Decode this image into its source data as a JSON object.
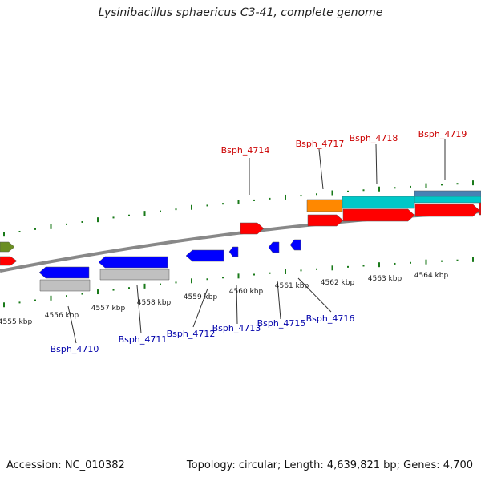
{
  "header": {
    "title": "Lysinibacillus sphaericus C3-41, complete genome"
  },
  "footer": {
    "accession": "Accession: NC_010382",
    "topology": "Topology: circular; Length: 4,639,821 bp; Genes: 4,700"
  },
  "colors": {
    "backbone": "#808080",
    "tick": "#1a7a1a",
    "forward_label": "#cc0000",
    "reverse_label": "#0000aa",
    "gene_red": "#ff0000",
    "gene_blue": "#0000ff",
    "gene_grey": "#c0c0c0",
    "gene_orange": "#ff8800",
    "gene_cyan": "#00c8c8",
    "gene_steel": "#4682b4",
    "gene_olive": "#6b8e23"
  },
  "ticks": [
    "4555 kbp",
    "4556 kbp",
    "4557 kbp",
    "4558 kbp",
    "4559 kbp",
    "4560 kbp",
    "4561 kbp",
    "4562 kbp",
    "4563 kbp",
    "4564 kbp"
  ],
  "forward_labels": [
    "Bsph_4714",
    "Bsph_4717",
    "Bsph_4718",
    "Bsph_4719"
  ],
  "reverse_labels": [
    "Bsph_4710",
    "Bsph_4711",
    "Bsph_4712",
    "Bsph_4713",
    "Bsph_4715",
    "Bsph_4716"
  ]
}
